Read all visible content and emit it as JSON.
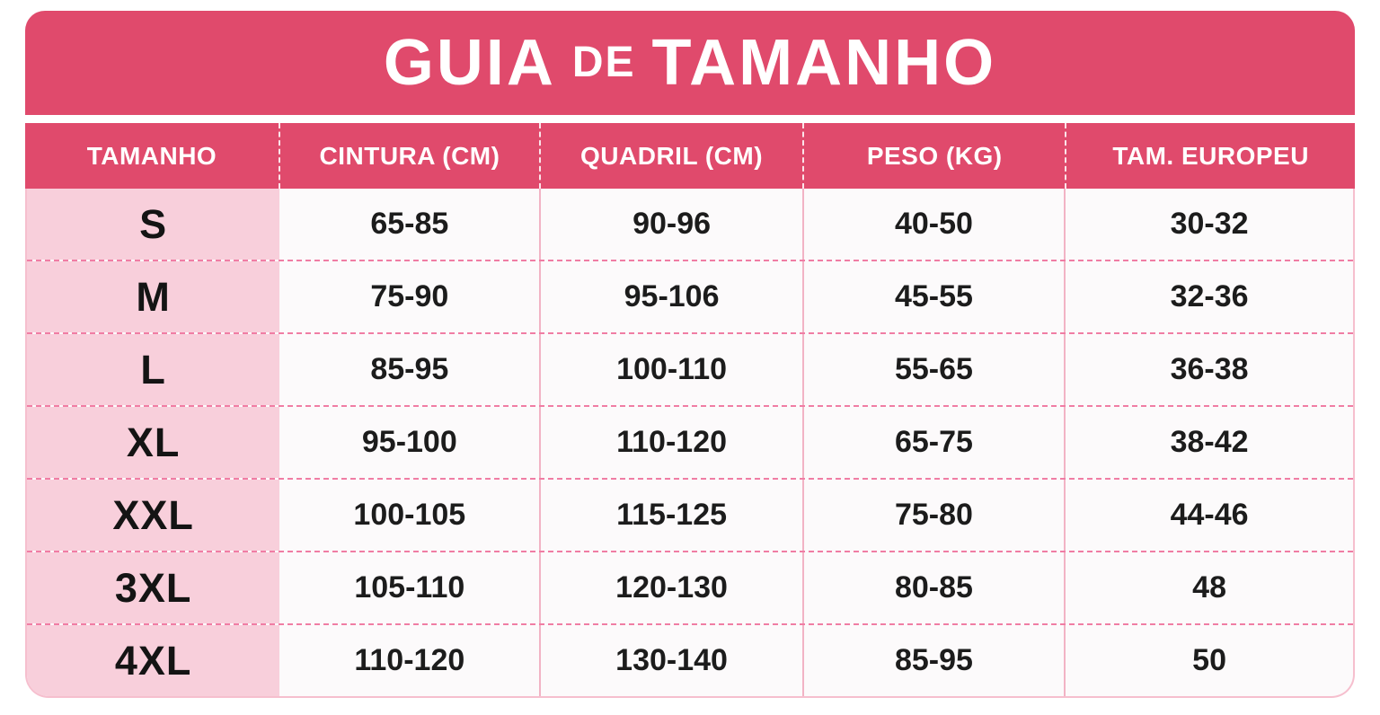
{
  "banner": {
    "word_large_1": "GUIA",
    "word_small": "DE",
    "word_large_2": "TAMANHO"
  },
  "table": {
    "headers": [
      "TAMANHO",
      "CINTURA (CM)",
      "QUADRIL (CM)",
      "PESO (KG)",
      "TAM. EUROPEU"
    ],
    "rows": [
      {
        "cells": [
          "S",
          "65-85",
          "90-96",
          "40-50",
          "30-32"
        ]
      },
      {
        "cells": [
          "M",
          "75-90",
          "95-106",
          "45-55",
          "32-36"
        ]
      },
      {
        "cells": [
          "L",
          "85-95",
          "100-110",
          "55-65",
          "36-38"
        ]
      },
      {
        "cells": [
          "XL",
          "95-100",
          "110-120",
          "65-75",
          "38-42"
        ]
      },
      {
        "cells": [
          "XXL",
          "100-105",
          "115-125",
          "75-80",
          "44-46"
        ]
      },
      {
        "cells": [
          "3XL",
          "105-110",
          "120-130",
          "80-85",
          "48"
        ]
      },
      {
        "cells": [
          "4XL",
          "110-120",
          "130-140",
          "85-95",
          "50"
        ]
      }
    ]
  },
  "colors": {
    "banner_pink": "#E04A6C",
    "size_column_pink": "#F8CFDB",
    "dashed_separator_pink": "#F07DA4",
    "vertical_line_pink": "#F2B3C5",
    "body_background": "#FCFAFB",
    "text_dark": "#1C1C1C",
    "header_text": "#FFFFFF"
  },
  "chart_data": {
    "type": "table",
    "title": "GUIA DE TAMANHO",
    "columns": [
      "TAMANHO",
      "CINTURA (CM)",
      "QUADRIL (CM)",
      "PESO (KG)",
      "TAM. EUROPEU"
    ],
    "rows": [
      [
        "S",
        "65-85",
        "90-96",
        "40-50",
        "30-32"
      ],
      [
        "M",
        "75-90",
        "95-106",
        "45-55",
        "32-36"
      ],
      [
        "L",
        "85-95",
        "100-110",
        "55-65",
        "36-38"
      ],
      [
        "XL",
        "95-100",
        "110-120",
        "65-75",
        "38-42"
      ],
      [
        "XXL",
        "100-105",
        "115-125",
        "75-80",
        "44-46"
      ],
      [
        "3XL",
        "105-110",
        "120-130",
        "80-85",
        "48"
      ],
      [
        "4XL",
        "110-120",
        "130-140",
        "85-95",
        "50"
      ]
    ]
  }
}
